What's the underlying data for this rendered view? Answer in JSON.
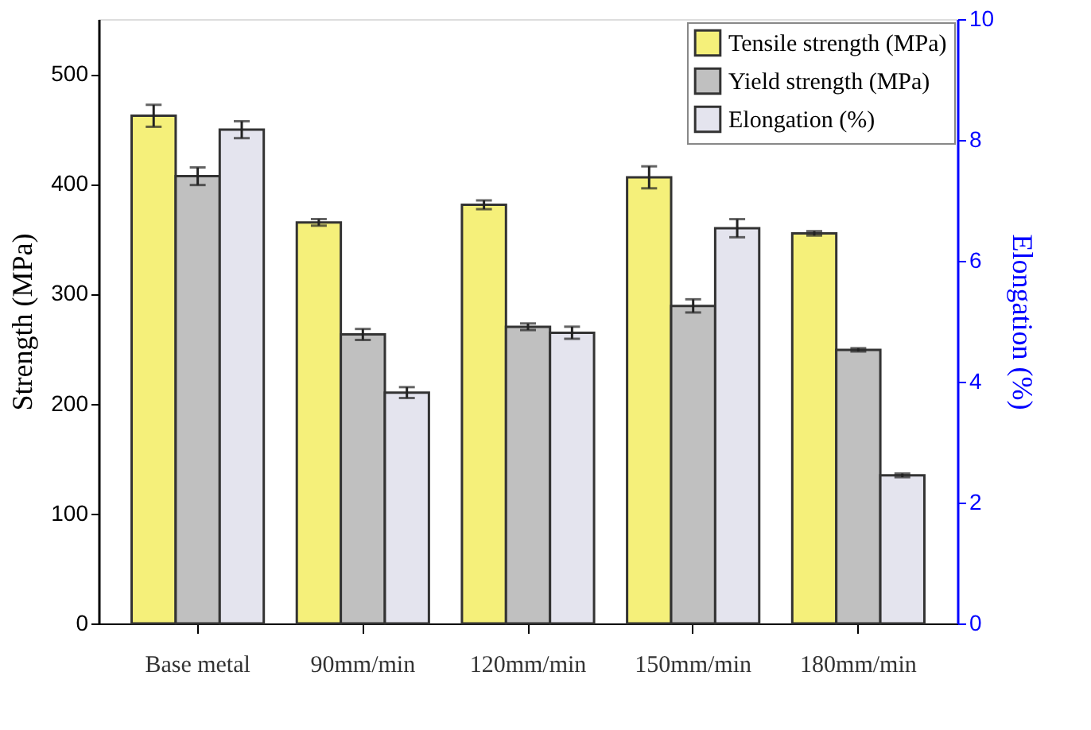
{
  "chart_data": {
    "type": "bar",
    "ylabel": "Strength (MPa)",
    "y2label": "Elongation (%)",
    "categories": [
      "Base metal",
      "90mm/min",
      "120mm/min",
      "150mm/min",
      "180mm/min"
    ],
    "series": [
      {
        "name": "Tensile strength (MPa)",
        "color": "#f5f07a",
        "values": [
          462,
          365,
          381,
          406,
          355
        ],
        "errors": [
          10,
          3,
          4,
          10,
          2
        ]
      },
      {
        "name": "Yield strength (MPa)",
        "color": "#c0c0c0",
        "values": [
          407,
          263,
          270,
          289,
          249
        ],
        "errors": [
          8,
          5,
          3,
          6,
          1.5
        ]
      },
      {
        "name": "Elongation (%)",
        "color": "#e4e4ee",
        "axis": "y2",
        "values": [
          8.17,
          3.82,
          4.81,
          6.54,
          2.45
        ],
        "errors": [
          0.14,
          0.09,
          0.1,
          0.15,
          0.03
        ]
      }
    ],
    "ylim": [
      0,
      550
    ],
    "yticks": [
      0,
      100,
      200,
      300,
      400,
      500
    ],
    "y2lim": [
      0,
      10
    ],
    "y2ticks": [
      0,
      2,
      4,
      6,
      8,
      10
    ],
    "legend": "top right",
    "grid": false
  }
}
